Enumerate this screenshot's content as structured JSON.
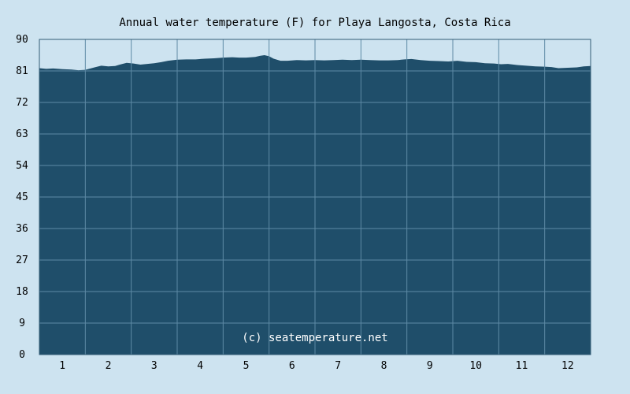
{
  "colors": {
    "background": "#cde3f0",
    "area_fill": "#1f4e6a",
    "grid": "#5e8aa5",
    "frame": "#345c76"
  },
  "chart_data": {
    "type": "area",
    "title": "Annual water temperature (F) for Playa Langosta, Costa Rica",
    "watermark": "(c) seatemperature.net",
    "xlabel": "",
    "ylabel": "",
    "xlim": [
      0.5,
      12.5
    ],
    "ylim": [
      0,
      90
    ],
    "y_ticks": [
      0,
      9,
      18,
      27,
      36,
      45,
      54,
      63,
      72,
      81,
      90
    ],
    "x_ticks": [
      1,
      2,
      3,
      4,
      5,
      6,
      7,
      8,
      9,
      10,
      11,
      12
    ],
    "grid": true,
    "legend": "none",
    "x": [
      0.5,
      0.65,
      0.8,
      1.0,
      1.2,
      1.35,
      1.5,
      1.7,
      1.85,
      2.0,
      2.15,
      2.25,
      2.4,
      2.55,
      2.7,
      2.85,
      3.0,
      3.15,
      3.3,
      3.5,
      3.7,
      3.9,
      4.1,
      4.3,
      4.5,
      4.7,
      4.85,
      5.0,
      5.2,
      5.3,
      5.4,
      5.5,
      5.6,
      5.75,
      5.9,
      6.1,
      6.3,
      6.5,
      6.7,
      6.9,
      7.1,
      7.3,
      7.5,
      7.7,
      7.9,
      8.1,
      8.3,
      8.45,
      8.6,
      8.8,
      9.0,
      9.2,
      9.4,
      9.6,
      9.8,
      10.0,
      10.2,
      10.4,
      10.55,
      10.7,
      10.9,
      11.1,
      11.3,
      11.5,
      11.65,
      11.8,
      12.0,
      12.2,
      12.35,
      12.5
    ],
    "values": [
      81.8,
      81.6,
      81.7,
      81.5,
      81.4,
      81.2,
      81.3,
      82.0,
      82.5,
      82.3,
      82.4,
      82.8,
      83.3,
      83.1,
      82.8,
      83.0,
      83.2,
      83.5,
      83.9,
      84.2,
      84.3,
      84.3,
      84.5,
      84.6,
      84.8,
      84.9,
      84.8,
      84.8,
      85.0,
      85.3,
      85.5,
      85.2,
      84.5,
      83.9,
      83.9,
      84.1,
      84.0,
      84.1,
      84.0,
      84.1,
      84.2,
      84.1,
      84.2,
      84.1,
      84.0,
      84.0,
      84.1,
      84.3,
      84.4,
      84.1,
      83.9,
      83.8,
      83.7,
      83.9,
      83.6,
      83.5,
      83.2,
      83.1,
      82.9,
      83.0,
      82.7,
      82.5,
      82.3,
      82.2,
      82.1,
      81.8,
      81.9,
      82.0,
      82.3,
      82.4
    ]
  }
}
